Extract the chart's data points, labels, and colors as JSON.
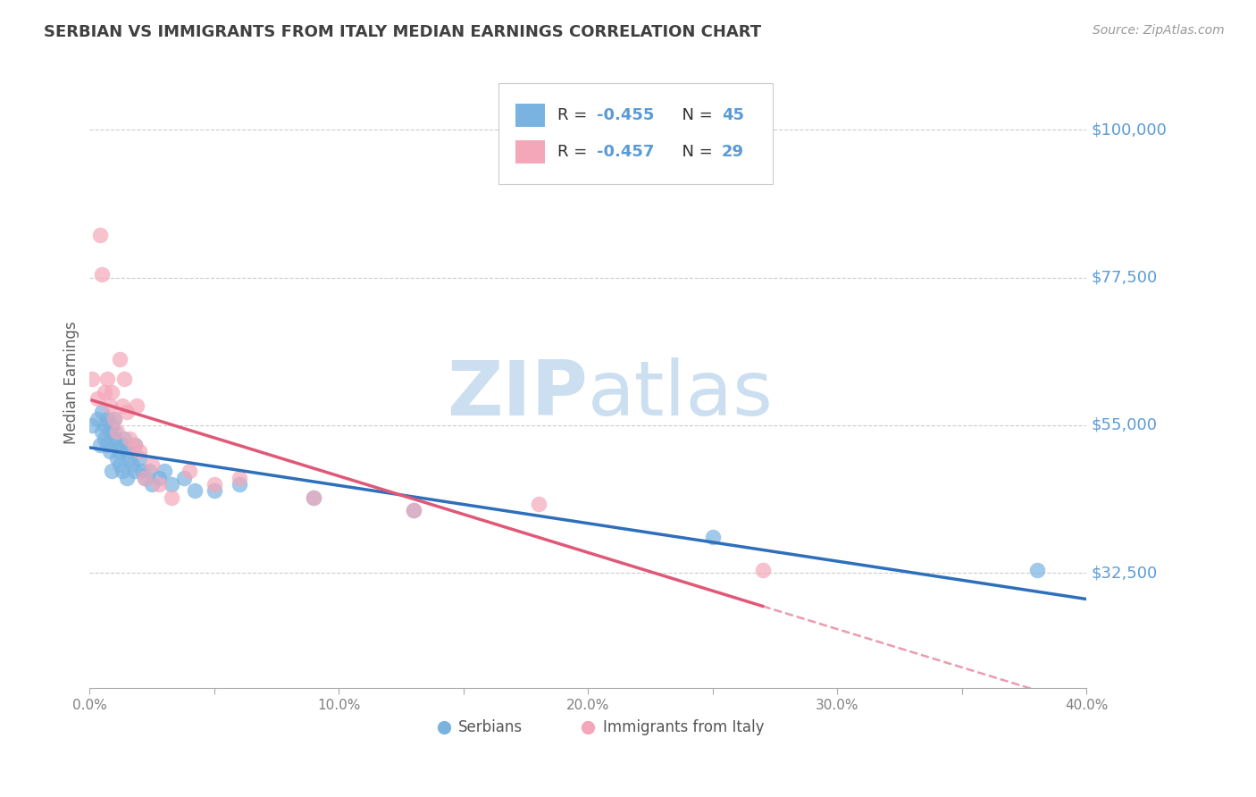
{
  "title": "SERBIAN VS IMMIGRANTS FROM ITALY MEDIAN EARNINGS CORRELATION CHART",
  "source": "Source: ZipAtlas.com",
  "ylabel": "Median Earnings",
  "yticks": [
    32500,
    55000,
    77500,
    100000
  ],
  "ytick_labels": [
    "$32,500",
    "$55,000",
    "$77,500",
    "$100,000"
  ],
  "xmin": 0.0,
  "xmax": 0.4,
  "ymin": 15000,
  "ymax": 108000,
  "scatter_blue": "#7ab3e0",
  "scatter_pink": "#f4a7b9",
  "line_blue": "#2e6fbc",
  "line_pink": "#e05878",
  "axis_label_color": "#5b9bd5",
  "title_color": "#404040",
  "legend_value_color": "#5b9bd5",
  "watermark_color": "#ccdff0",
  "serbians_x": [
    0.001,
    0.003,
    0.004,
    0.005,
    0.005,
    0.006,
    0.006,
    0.007,
    0.007,
    0.008,
    0.008,
    0.009,
    0.009,
    0.01,
    0.01,
    0.01,
    0.011,
    0.011,
    0.012,
    0.012,
    0.013,
    0.013,
    0.014,
    0.015,
    0.015,
    0.016,
    0.017,
    0.018,
    0.018,
    0.02,
    0.021,
    0.022,
    0.024,
    0.025,
    0.028,
    0.03,
    0.033,
    0.038,
    0.042,
    0.05,
    0.06,
    0.09,
    0.13,
    0.25,
    0.38
  ],
  "serbians_y": [
    55000,
    56000,
    52000,
    54000,
    57000,
    53000,
    55000,
    56000,
    52000,
    51000,
    54000,
    55000,
    48000,
    53000,
    54000,
    56000,
    52000,
    50000,
    51000,
    49000,
    52000,
    48000,
    53000,
    51000,
    47000,
    50000,
    49000,
    52000,
    48000,
    50000,
    48000,
    47000,
    48000,
    46000,
    47000,
    48000,
    46000,
    47000,
    45000,
    45000,
    46000,
    44000,
    42000,
    38000,
    33000
  ],
  "italy_x": [
    0.001,
    0.003,
    0.004,
    0.005,
    0.006,
    0.007,
    0.008,
    0.009,
    0.01,
    0.011,
    0.012,
    0.013,
    0.014,
    0.015,
    0.016,
    0.018,
    0.019,
    0.02,
    0.022,
    0.025,
    0.028,
    0.033,
    0.04,
    0.05,
    0.06,
    0.09,
    0.13,
    0.18,
    0.27
  ],
  "italy_y": [
    62000,
    59000,
    84000,
    78000,
    60000,
    62000,
    58000,
    60000,
    56000,
    54000,
    65000,
    58000,
    62000,
    57000,
    53000,
    52000,
    58000,
    51000,
    47000,
    49000,
    46000,
    44000,
    48000,
    46000,
    47000,
    44000,
    42000,
    43000,
    33000
  ]
}
